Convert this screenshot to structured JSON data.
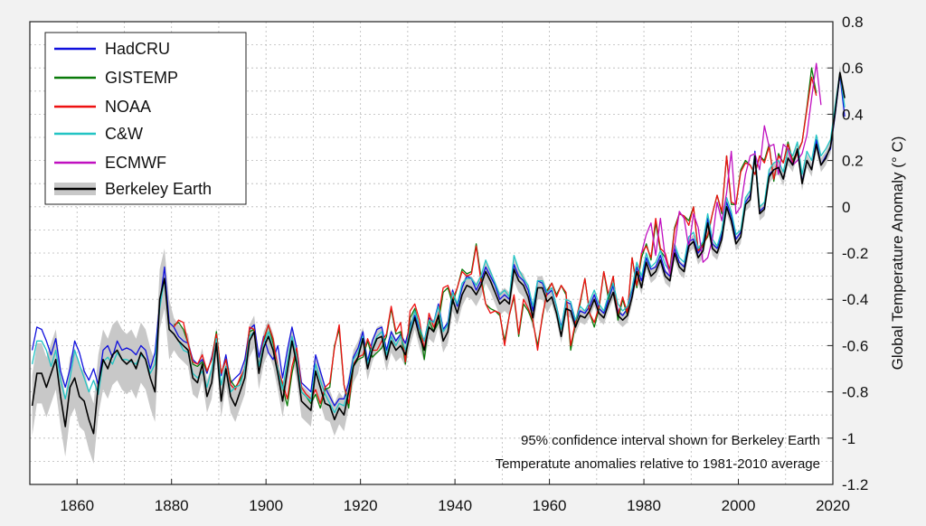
{
  "chart_data": {
    "type": "line",
    "title": "",
    "xlabel": "",
    "ylabel": "Global Temperature Anomaly (° C)",
    "xlim": [
      1850,
      2020
    ],
    "ylim": [
      -1.2,
      0.8
    ],
    "xticks": [
      "1860",
      "1880",
      "1900",
      "1920",
      "1940",
      "1960",
      "1980",
      "2000",
      "2020"
    ],
    "yticks": [
      "0.8",
      "0.6",
      "0.4",
      "0.2",
      "0",
      "-0.2",
      "-0.4",
      "-0.6",
      "-0.8",
      "-1",
      "-1.2"
    ],
    "grid": true,
    "legend_position": "top-left",
    "annotations": [
      "95% confidence interval shown for Berkeley Earth",
      "Temperatute anomalies relative to 1981-2010 average"
    ],
    "series": [
      {
        "name": "HadCRU",
        "color": "#1010dd",
        "start_year": 1850,
        "values": [
          -0.62,
          -0.52,
          -0.53,
          -0.58,
          -0.64,
          -0.57,
          -0.71,
          -0.78,
          -0.7,
          -0.58,
          -0.63,
          -0.71,
          -0.75,
          -0.7,
          -0.77,
          -0.62,
          -0.6,
          -0.65,
          -0.58,
          -0.62,
          -0.61,
          -0.62,
          -0.64,
          -0.6,
          -0.62,
          -0.7,
          -0.63,
          -0.42,
          -0.26,
          -0.5,
          -0.52,
          -0.56,
          -0.58,
          -0.59,
          -0.66,
          -0.68,
          -0.66,
          -0.72,
          -0.65,
          -0.55,
          -0.73,
          -0.64,
          -0.76,
          -0.74,
          -0.72,
          -0.66,
          -0.53,
          -0.51,
          -0.65,
          -0.56,
          -0.63,
          -0.66,
          -0.6,
          -0.74,
          -0.62,
          -0.52,
          -0.61,
          -0.76,
          -0.78,
          -0.8,
          -0.64,
          -0.71,
          -0.78,
          -0.82,
          -0.86,
          -0.83,
          -0.83,
          -0.76,
          -0.65,
          -0.61,
          -0.54,
          -0.67,
          -0.58,
          -0.53,
          -0.52,
          -0.62,
          -0.54,
          -0.58,
          -0.55,
          -0.59,
          -0.51,
          -0.47,
          -0.53,
          -0.58,
          -0.48,
          -0.5,
          -0.42,
          -0.53,
          -0.5,
          -0.36,
          -0.43,
          -0.35,
          -0.3,
          -0.31,
          -0.36,
          -0.32,
          -0.26,
          -0.3,
          -0.34,
          -0.4,
          -0.38,
          -0.4,
          -0.25,
          -0.3,
          -0.32,
          -0.36,
          -0.45,
          -0.32,
          -0.33,
          -0.38,
          -0.36,
          -0.43,
          -0.52,
          -0.41,
          -0.42,
          -0.5,
          -0.45,
          -0.46,
          -0.43,
          -0.38,
          -0.44,
          -0.46,
          -0.4,
          -0.34,
          -0.45,
          -0.47,
          -0.44,
          -0.36,
          -0.26,
          -0.32,
          -0.22,
          -0.27,
          -0.26,
          -0.21,
          -0.28,
          -0.3,
          -0.18,
          -0.24,
          -0.26,
          -0.15,
          -0.14,
          -0.2,
          -0.17,
          -0.05,
          -0.16,
          -0.18,
          -0.12,
          0.02,
          -0.04,
          -0.14,
          -0.11,
          0.02,
          0.05,
          0.24,
          -0.02,
          0.0,
          0.14,
          0.16,
          0.17,
          0.12,
          0.21,
          0.18,
          0.24,
          0.11,
          0.2,
          0.16,
          0.29,
          0.18,
          0.22,
          0.25,
          0.4,
          0.57,
          0.39
        ]
      },
      {
        "name": "GISTEMP",
        "color": "#0a7a0a",
        "start_year": 1880,
        "values": [
          -0.51,
          -0.5,
          -0.53,
          -0.59,
          -0.68,
          -0.69,
          -0.67,
          -0.71,
          -0.66,
          -0.54,
          -0.72,
          -0.66,
          -0.75,
          -0.78,
          -0.75,
          -0.7,
          -0.54,
          -0.53,
          -0.69,
          -0.58,
          -0.51,
          -0.59,
          -0.7,
          -0.78,
          -0.86,
          -0.72,
          -0.62,
          -0.8,
          -0.82,
          -0.85,
          -0.81,
          -0.87,
          -0.79,
          -0.78,
          -0.6,
          -0.53,
          -0.77,
          -0.87,
          -0.69,
          -0.66,
          -0.65,
          -0.58,
          -0.65,
          -0.63,
          -0.61,
          -0.56,
          -0.44,
          -0.55,
          -0.54,
          -0.68,
          -0.48,
          -0.44,
          -0.52,
          -0.66,
          -0.49,
          -0.54,
          -0.5,
          -0.37,
          -0.35,
          -0.42,
          -0.35,
          -0.27,
          -0.29,
          -0.28,
          -0.16,
          -0.3,
          -0.42,
          -0.44,
          -0.45,
          -0.47,
          -0.58,
          -0.47,
          -0.39,
          -0.56,
          -0.42,
          -0.45,
          -0.5,
          -0.6,
          -0.48,
          -0.36,
          -0.33,
          -0.38,
          -0.34,
          -0.38,
          -0.62,
          -0.51,
          -0.42,
          -0.31,
          -0.46,
          -0.52,
          -0.44,
          -0.28,
          -0.4,
          -0.3,
          -0.49,
          -0.4,
          -0.47,
          -0.22,
          -0.35,
          -0.22,
          -0.16,
          -0.23,
          -0.07,
          -0.19,
          -0.22,
          -0.27,
          -0.09,
          -0.03,
          -0.04,
          -0.06,
          0.0,
          -0.19,
          -0.16,
          -0.13,
          -0.03,
          0.05,
          -0.03,
          0.22,
          0.01,
          0.01,
          0.16,
          0.2,
          0.18,
          0.14,
          0.22,
          0.2,
          0.27,
          0.11,
          0.23,
          0.19,
          0.28,
          0.2,
          0.24,
          0.28,
          0.43,
          0.6,
          0.49
        ]
      },
      {
        "name": "NOAA",
        "color": "#ee1111",
        "start_year": 1880,
        "values": [
          -0.52,
          -0.49,
          -0.5,
          -0.59,
          -0.67,
          -0.68,
          -0.64,
          -0.71,
          -0.66,
          -0.55,
          -0.72,
          -0.66,
          -0.77,
          -0.79,
          -0.74,
          -0.7,
          -0.52,
          -0.53,
          -0.69,
          -0.57,
          -0.51,
          -0.57,
          -0.7,
          -0.76,
          -0.83,
          -0.69,
          -0.61,
          -0.78,
          -0.81,
          -0.83,
          -0.79,
          -0.85,
          -0.78,
          -0.76,
          -0.61,
          -0.51,
          -0.77,
          -0.85,
          -0.68,
          -0.65,
          -0.64,
          -0.57,
          -0.62,
          -0.62,
          -0.58,
          -0.55,
          -0.43,
          -0.54,
          -0.5,
          -0.67,
          -0.45,
          -0.42,
          -0.49,
          -0.62,
          -0.46,
          -0.52,
          -0.47,
          -0.35,
          -0.34,
          -0.4,
          -0.35,
          -0.28,
          -0.3,
          -0.29,
          -0.17,
          -0.32,
          -0.42,
          -0.46,
          -0.45,
          -0.46,
          -0.6,
          -0.47,
          -0.38,
          -0.55,
          -0.4,
          -0.44,
          -0.49,
          -0.62,
          -0.47,
          -0.37,
          -0.33,
          -0.39,
          -0.34,
          -0.37,
          -0.6,
          -0.5,
          -0.41,
          -0.31,
          -0.46,
          -0.5,
          -0.43,
          -0.28,
          -0.38,
          -0.3,
          -0.47,
          -0.39,
          -0.46,
          -0.22,
          -0.34,
          -0.2,
          -0.17,
          -0.22,
          -0.05,
          -0.18,
          -0.2,
          -0.28,
          -0.1,
          -0.03,
          -0.04,
          -0.08,
          0.0,
          -0.19,
          -0.17,
          -0.12,
          -0.03,
          0.05,
          -0.02,
          0.22,
          0.02,
          0.01,
          0.15,
          0.19,
          0.18,
          0.14,
          0.22,
          0.19,
          0.26,
          0.12,
          0.22,
          0.19,
          0.27,
          0.19,
          0.23,
          0.28,
          0.42,
          0.56,
          0.48
        ]
      },
      {
        "name": "C&W",
        "color": "#22c4c4",
        "start_year": 1850,
        "values": [
          -0.68,
          -0.58,
          -0.58,
          -0.62,
          -0.69,
          -0.62,
          -0.75,
          -0.83,
          -0.74,
          -0.62,
          -0.68,
          -0.74,
          -0.8,
          -0.75,
          -0.81,
          -0.67,
          -0.65,
          -0.68,
          -0.63,
          -0.66,
          -0.66,
          -0.67,
          -0.68,
          -0.64,
          -0.66,
          -0.72,
          -0.68,
          -0.44,
          -0.31,
          -0.53,
          -0.55,
          -0.58,
          -0.62,
          -0.63,
          -0.72,
          -0.74,
          -0.71,
          -0.78,
          -0.7,
          -0.57,
          -0.77,
          -0.69,
          -0.8,
          -0.78,
          -0.77,
          -0.7,
          -0.56,
          -0.54,
          -0.69,
          -0.59,
          -0.54,
          -0.62,
          -0.7,
          -0.79,
          -0.67,
          -0.56,
          -0.65,
          -0.8,
          -0.82,
          -0.84,
          -0.68,
          -0.75,
          -0.81,
          -0.85,
          -0.89,
          -0.85,
          -0.86,
          -0.79,
          -0.66,
          -0.63,
          -0.56,
          -0.68,
          -0.61,
          -0.56,
          -0.54,
          -0.64,
          -0.56,
          -0.6,
          -0.56,
          -0.62,
          -0.53,
          -0.45,
          -0.52,
          -0.58,
          -0.49,
          -0.5,
          -0.43,
          -0.54,
          -0.51,
          -0.37,
          -0.42,
          -0.33,
          -0.31,
          -0.31,
          -0.34,
          -0.3,
          -0.23,
          -0.28,
          -0.33,
          -0.38,
          -0.36,
          -0.39,
          -0.21,
          -0.27,
          -0.31,
          -0.34,
          -0.43,
          -0.32,
          -0.32,
          -0.37,
          -0.35,
          -0.43,
          -0.53,
          -0.4,
          -0.41,
          -0.49,
          -0.43,
          -0.45,
          -0.41,
          -0.36,
          -0.42,
          -0.45,
          -0.38,
          -0.33,
          -0.42,
          -0.45,
          -0.43,
          -0.35,
          -0.24,
          -0.3,
          -0.2,
          -0.26,
          -0.24,
          -0.19,
          -0.25,
          -0.28,
          -0.16,
          -0.22,
          -0.24,
          -0.13,
          -0.11,
          -0.18,
          -0.15,
          -0.03,
          -0.14,
          -0.17,
          -0.1,
          0.04,
          -0.02,
          -0.12,
          -0.1,
          0.04,
          0.07,
          0.23,
          0.0,
          0.02,
          0.16,
          0.19,
          0.2,
          0.15,
          0.25,
          0.22,
          0.28,
          0.14,
          0.24,
          0.2,
          0.31,
          0.22,
          0.25,
          0.29,
          0.44,
          0.58,
          0.43
        ]
      },
      {
        "name": "ECMWF",
        "color": "#c010c0",
        "start_year": 1979,
        "values": [
          -0.2,
          -0.12,
          -0.07,
          -0.21,
          -0.05,
          -0.22,
          -0.29,
          -0.17,
          -0.02,
          -0.05,
          -0.18,
          -0.03,
          -0.09,
          -0.24,
          -0.22,
          -0.14,
          0.02,
          -0.06,
          0.06,
          0.24,
          -0.03,
          0.0,
          0.14,
          0.22,
          0.23,
          0.16,
          0.35,
          0.26,
          0.27,
          0.14,
          0.27,
          0.25,
          0.18,
          0.2,
          0.23,
          0.31,
          0.47,
          0.62,
          0.44
        ]
      },
      {
        "name": "Berkeley Earth",
        "color": "#000000",
        "band_color": "#c8c8c8",
        "start_year": 1850,
        "values": [
          -0.86,
          -0.72,
          -0.72,
          -0.78,
          -0.72,
          -0.66,
          -0.82,
          -0.95,
          -0.78,
          -0.74,
          -0.82,
          -0.84,
          -0.92,
          -0.98,
          -0.77,
          -0.66,
          -0.7,
          -0.64,
          -0.62,
          -0.66,
          -0.68,
          -0.66,
          -0.7,
          -0.63,
          -0.66,
          -0.74,
          -0.8,
          -0.4,
          -0.31,
          -0.53,
          -0.55,
          -0.58,
          -0.6,
          -0.62,
          -0.74,
          -0.76,
          -0.68,
          -0.82,
          -0.76,
          -0.59,
          -0.84,
          -0.7,
          -0.82,
          -0.86,
          -0.8,
          -0.74,
          -0.58,
          -0.54,
          -0.72,
          -0.61,
          -0.56,
          -0.62,
          -0.72,
          -0.84,
          -0.71,
          -0.58,
          -0.68,
          -0.84,
          -0.86,
          -0.88,
          -0.71,
          -0.78,
          -0.85,
          -0.86,
          -0.92,
          -0.87,
          -0.9,
          -0.8,
          -0.69,
          -0.65,
          -0.57,
          -0.7,
          -0.62,
          -0.57,
          -0.56,
          -0.66,
          -0.58,
          -0.62,
          -0.6,
          -0.64,
          -0.55,
          -0.48,
          -0.56,
          -0.62,
          -0.52,
          -0.54,
          -0.47,
          -0.58,
          -0.54,
          -0.4,
          -0.46,
          -0.38,
          -0.34,
          -0.35,
          -0.38,
          -0.34,
          -0.28,
          -0.32,
          -0.37,
          -0.42,
          -0.4,
          -0.42,
          -0.27,
          -0.32,
          -0.34,
          -0.39,
          -0.48,
          -0.35,
          -0.35,
          -0.41,
          -0.39,
          -0.46,
          -0.56,
          -0.44,
          -0.45,
          -0.52,
          -0.47,
          -0.48,
          -0.45,
          -0.4,
          -0.46,
          -0.48,
          -0.42,
          -0.37,
          -0.47,
          -0.49,
          -0.47,
          -0.39,
          -0.28,
          -0.35,
          -0.24,
          -0.3,
          -0.28,
          -0.23,
          -0.3,
          -0.32,
          -0.2,
          -0.26,
          -0.28,
          -0.17,
          -0.15,
          -0.22,
          -0.19,
          -0.07,
          -0.18,
          -0.2,
          -0.14,
          0.0,
          -0.06,
          -0.16,
          -0.13,
          0.01,
          0.03,
          0.22,
          -0.03,
          -0.01,
          0.13,
          0.16,
          0.17,
          0.12,
          0.21,
          0.18,
          0.25,
          0.1,
          0.2,
          0.16,
          0.27,
          0.18,
          0.21,
          0.26,
          0.41,
          0.58,
          0.47
        ]
      }
    ]
  },
  "legend": {
    "items": [
      {
        "label": "HadCRU",
        "color": "#1010dd"
      },
      {
        "label": "GISTEMP",
        "color": "#0a7a0a"
      },
      {
        "label": "NOAA",
        "color": "#ee1111"
      },
      {
        "label": "C&W",
        "color": "#22c4c4"
      },
      {
        "label": "ECMWF",
        "color": "#c010c0"
      },
      {
        "label": "Berkeley Earth",
        "color": "#000000",
        "band": true
      }
    ]
  },
  "notes": {
    "line1": "95% confidence interval shown for Berkeley Earth",
    "line2": "Temperatute anomalies relative to 1981-2010 average"
  }
}
